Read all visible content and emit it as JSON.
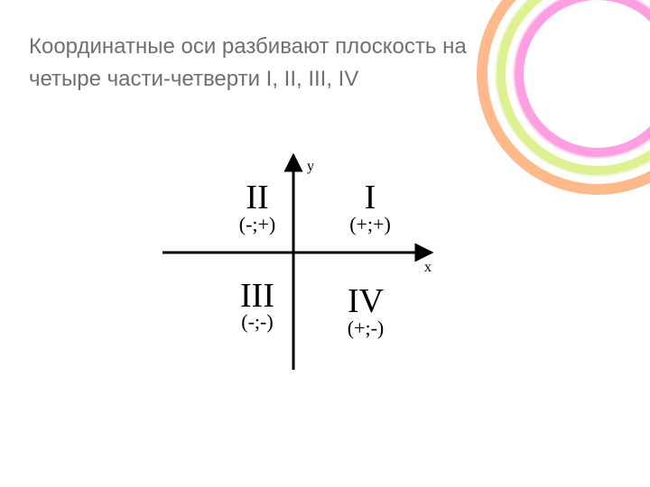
{
  "title": {
    "line1": "Координатные оси разбивают плоскость на",
    "line2": "четыре части-четверти I, II, III, IV",
    "color": "#6f6f6f",
    "fontsize": 24
  },
  "ribbon": {
    "colors": [
      "#ff5fcf",
      "#ffffff",
      "#c7e84a",
      "#ffffff",
      "#ff8a3d"
    ],
    "inner_radii": [
      70,
      80,
      90,
      100,
      110
    ],
    "band_width": 12
  },
  "diagram": {
    "axis_color": "#000000",
    "axis_width": 3,
    "x_label": "x",
    "y_label": "y",
    "axis_label_fontsize": 16,
    "axis_label_color": "#000000",
    "quadrants": {
      "q1": {
        "roman": "I",
        "sign": "(+;+)"
      },
      "q2": {
        "roman": "II",
        "sign": "(-;+)"
      },
      "q3": {
        "roman": "III",
        "sign": "(-;-)"
      },
      "q4": {
        "roman": "IV",
        "sign": "(+;-)"
      }
    },
    "roman_fontsize": 38,
    "sign_fontsize": 22,
    "label_color": "#000000"
  }
}
